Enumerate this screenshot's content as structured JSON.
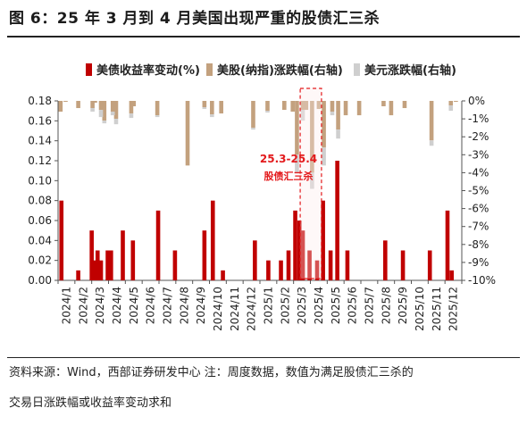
{
  "title": "图 6：25 年 3 月到 4 月美国出现严重的股债汇三杀",
  "legend": [
    {
      "name": "美债收益率变动(%)",
      "color": "#c00000"
    },
    {
      "name": "美股(纳指)涨跌幅(右轴)",
      "color": "#c3a17e"
    },
    {
      "name": "美元涨跌幅(右轴)",
      "color": "#cfcfcf"
    }
  ],
  "annotation": {
    "line1": "25.3-25.4",
    "line2": "股债汇三杀"
  },
  "footnote": {
    "line1": "资料来源：Wind，西部证券研发中心 注：周度数据，数值为满足股债汇三杀的",
    "line2": "交易日涨跌幅或收益率变动求和"
  },
  "chart_data": {
    "type": "bar",
    "title": "图 6：25 年 3 月到 4 月美国出现严重的股债汇三杀",
    "x_labels": [
      "2024/1",
      "2024/2",
      "2024/3",
      "2024/4",
      "2024/5",
      "2024/6",
      "2024/7",
      "2024/8",
      "2024/9",
      "2024/10",
      "2024/11",
      "2024/12",
      "2025/1",
      "2025/2",
      "2025/3",
      "2025/4",
      "2025/5",
      "2025/6",
      "2025/7",
      "2025/8",
      "2025/9",
      "2025/10",
      "2025/11",
      "2025/12"
    ],
    "y_left": {
      "min": 0,
      "max": 0.18,
      "ticks": [
        0,
        0.02,
        0.04,
        0.06,
        0.08,
        0.1,
        0.12,
        0.14,
        0.16,
        0.18
      ]
    },
    "y_right": {
      "min": -10,
      "max": 0,
      "ticks": [
        "0%",
        "-1%",
        "-2%",
        "-3%",
        "-4%",
        "-5%",
        "-6%",
        "-7%",
        "-8%",
        "-9%",
        "-10%"
      ]
    },
    "highlight": {
      "from": "2025/3",
      "to": "2025/4"
    },
    "series": [
      {
        "name": "美债收益率变动(%)",
        "axis": "left",
        "color": "#c00000",
        "points": [
          [
            0.2,
            0.08
          ],
          [
            1.2,
            0.01
          ],
          [
            2.0,
            0.05
          ],
          [
            2.15,
            0.02
          ],
          [
            2.35,
            0.03
          ],
          [
            2.55,
            0.02
          ],
          [
            2.95,
            0.03
          ],
          [
            3.15,
            0.03
          ],
          [
            3.85,
            0.05
          ],
          [
            4.45,
            0.04
          ],
          [
            5.95,
            0.07
          ],
          [
            6.95,
            0.03
          ],
          [
            8.7,
            0.05
          ],
          [
            9.2,
            0.08
          ],
          [
            9.8,
            0.01
          ],
          [
            11.7,
            0.04
          ],
          [
            12.5,
            0.02
          ],
          [
            13.25,
            0.02
          ],
          [
            13.7,
            0.03
          ],
          [
            14.1,
            0.07
          ],
          [
            14.35,
            0.06
          ],
          [
            14.55,
            0.05
          ],
          [
            14.95,
            0.03
          ],
          [
            15.4,
            0.02
          ],
          [
            15.75,
            0.08
          ],
          [
            16.2,
            0.03
          ],
          [
            16.6,
            0.12
          ],
          [
            17.2,
            0.03
          ],
          [
            19.45,
            0.04
          ],
          [
            20.5,
            0.03
          ],
          [
            22.1,
            0.03
          ],
          [
            23.15,
            0.07
          ],
          [
            23.4,
            0.01
          ]
        ]
      },
      {
        "name": "美股(纳指)涨跌幅(右轴)",
        "axis": "right",
        "color": "#c3a17e",
        "points": [
          [
            0.15,
            -0.6
          ],
          [
            0.45,
            -0.05
          ],
          [
            1.2,
            -0.4
          ],
          [
            2.05,
            -0.4
          ],
          [
            2.2,
            -0.1
          ],
          [
            2.55,
            -0.5
          ],
          [
            2.75,
            -1.1
          ],
          [
            3.25,
            -0.6
          ],
          [
            3.45,
            -1.0
          ],
          [
            4.35,
            -0.7
          ],
          [
            4.5,
            -0.3
          ],
          [
            5.9,
            -0.8
          ],
          [
            7.7,
            -3.6
          ],
          [
            8.7,
            -0.35
          ],
          [
            9.15,
            -0.75
          ],
          [
            9.7,
            -0.7
          ],
          [
            11.6,
            -1.5
          ],
          [
            12.45,
            -0.55
          ],
          [
            13.45,
            -0.5
          ],
          [
            13.95,
            -0.6
          ],
          [
            14.2,
            -3.0
          ],
          [
            14.55,
            -0.5
          ],
          [
            14.75,
            -0.5
          ],
          [
            15.1,
            -4.0
          ],
          [
            15.5,
            -0.45
          ],
          [
            15.8,
            -2.6
          ],
          [
            16.3,
            -0.6
          ],
          [
            16.65,
            -1.6
          ],
          [
            17.1,
            -0.8
          ],
          [
            17.9,
            -0.8
          ],
          [
            19.35,
            -0.3
          ],
          [
            19.8,
            -0.8
          ],
          [
            20.6,
            -0.4
          ],
          [
            22.2,
            -2.2
          ],
          [
            23.35,
            -0.25
          ],
          [
            23.65,
            -0.05
          ]
        ]
      },
      {
        "name": "美元涨跌幅(右轴)",
        "axis": "right",
        "color": "#cfcfcf",
        "points": [
          [
            2.05,
            -0.2
          ],
          [
            2.55,
            -0.4
          ],
          [
            2.75,
            -0.15
          ],
          [
            3.25,
            -0.2
          ],
          [
            3.45,
            -0.3
          ],
          [
            4.35,
            -0.25
          ],
          [
            5.9,
            -0.1
          ],
          [
            8.7,
            -0.1
          ],
          [
            9.15,
            -0.15
          ],
          [
            11.6,
            -0.1
          ],
          [
            12.45,
            -0.1
          ],
          [
            14.2,
            -1.0
          ],
          [
            14.55,
            -0.6
          ],
          [
            15.1,
            -0.9
          ],
          [
            15.8,
            -1.0
          ],
          [
            16.3,
            -0.2
          ],
          [
            16.65,
            -0.5
          ],
          [
            22.2,
            -0.3
          ],
          [
            23.35,
            -0.3
          ]
        ]
      }
    ]
  }
}
